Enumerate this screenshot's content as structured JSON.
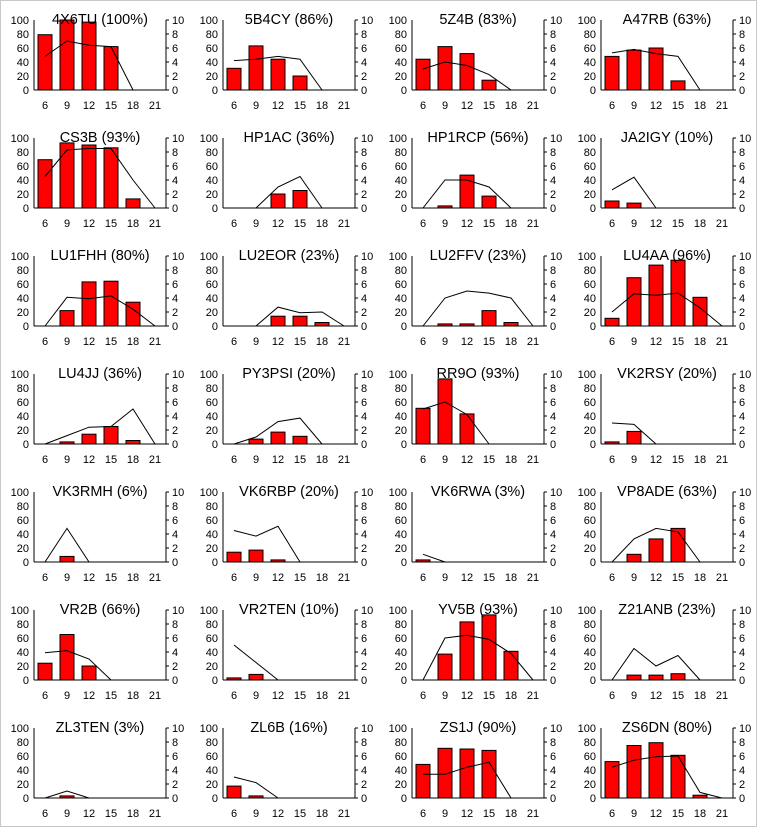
{
  "chart_data": {
    "type": "bar+line",
    "categories": [
      6,
      9,
      12,
      15,
      18,
      21
    ],
    "left_axis": {
      "ylim": [
        0,
        100
      ],
      "ticks": [
        0,
        20,
        40,
        60,
        80,
        100
      ]
    },
    "right_axis": {
      "ylim": [
        0,
        10
      ],
      "ticks": [
        0,
        2,
        4,
        6,
        8,
        10
      ]
    },
    "grid": false,
    "colors": {
      "bar": "#ff0000",
      "bar_edge": "#000000",
      "line": "#000000"
    },
    "panels": [
      {
        "title": "4X6TU (100%)",
        "bars": [
          79,
          100,
          97,
          62,
          0,
          0
        ],
        "line": [
          4.8,
          7,
          6.4,
          6.2,
          0,
          null
        ]
      },
      {
        "title": "5B4CY (86%)",
        "bars": [
          31,
          63,
          44,
          20,
          0,
          0
        ],
        "line": [
          4.2,
          4.4,
          4.8,
          4.4,
          0,
          null
        ]
      },
      {
        "title": "5Z4B (83%)",
        "bars": [
          44,
          62,
          52,
          14,
          0,
          0
        ],
        "line": [
          3,
          4,
          3.5,
          2.2,
          0,
          null
        ]
      },
      {
        "title": "A47RB (63%)",
        "bars": [
          48,
          57,
          60,
          13,
          0,
          0
        ],
        "line": [
          5.3,
          5.8,
          5.2,
          4.8,
          0,
          null
        ]
      },
      {
        "title": "CS3B (93%)",
        "bars": [
          69,
          93,
          90,
          86,
          13,
          0
        ],
        "line": [
          4.5,
          8.3,
          8.5,
          8.5,
          4,
          0
        ]
      },
      {
        "title": "HP1AC (36%)",
        "bars": [
          0,
          0,
          20,
          25,
          0,
          0
        ],
        "line": [
          null,
          0,
          3,
          4.5,
          0,
          null
        ]
      },
      {
        "title": "HP1RCP (56%)",
        "bars": [
          0,
          3,
          47,
          17,
          0,
          0
        ],
        "line": [
          0,
          4,
          4,
          3,
          0,
          null
        ]
      },
      {
        "title": "JA2IGY (10%)",
        "bars": [
          10,
          7,
          0,
          0,
          0,
          0
        ],
        "line": [
          2.6,
          4.4,
          0,
          null,
          null,
          null
        ]
      },
      {
        "title": "LU1FHH (80%)",
        "bars": [
          0,
          22,
          63,
          64,
          34,
          0
        ],
        "line": [
          0,
          4.1,
          3.9,
          4.3,
          2.4,
          0
        ]
      },
      {
        "title": "LU2EOR (23%)",
        "bars": [
          0,
          0,
          14,
          14,
          5,
          0
        ],
        "line": [
          null,
          0,
          2.7,
          1.9,
          2,
          0
        ]
      },
      {
        "title": "LU2FFV (23%)",
        "bars": [
          0,
          3,
          3,
          22,
          5,
          0
        ],
        "line": [
          0,
          4,
          5,
          4.7,
          4,
          0
        ]
      },
      {
        "title": "LU4AA (96%)",
        "bars": [
          11,
          69,
          87,
          94,
          41,
          0
        ],
        "line": [
          2,
          4.6,
          4.4,
          4.7,
          2.6,
          0
        ]
      },
      {
        "title": "LU4JJ (36%)",
        "bars": [
          0,
          3,
          14,
          25,
          5,
          0
        ],
        "line": [
          0,
          1.2,
          2.4,
          2.5,
          5,
          0
        ]
      },
      {
        "title": "PY3PSI (20%)",
        "bars": [
          0,
          7,
          17,
          11,
          0,
          0
        ],
        "line": [
          0,
          1,
          3.2,
          3.7,
          0,
          null
        ]
      },
      {
        "title": "RR9O (93%)",
        "bars": [
          51,
          93,
          43,
          0,
          0,
          0
        ],
        "line": [
          5,
          6,
          4.2,
          0,
          null,
          null
        ]
      },
      {
        "title": "VK2RSY (20%)",
        "bars": [
          3,
          18,
          0,
          0,
          0,
          0
        ],
        "line": [
          3,
          2.8,
          0,
          null,
          null,
          null
        ]
      },
      {
        "title": "VK3RMH (6%)",
        "bars": [
          0,
          8,
          0,
          0,
          0,
          0
        ],
        "line": [
          0,
          4.8,
          0,
          null,
          null,
          null
        ]
      },
      {
        "title": "VK6RBP (20%)",
        "bars": [
          14,
          17,
          3,
          0,
          0,
          0
        ],
        "line": [
          4.5,
          3.7,
          5.1,
          0,
          null,
          null
        ]
      },
      {
        "title": "VK6RWA (3%)",
        "bars": [
          3,
          0,
          0,
          0,
          0,
          0
        ],
        "line": [
          1.1,
          0,
          null,
          null,
          null,
          null
        ]
      },
      {
        "title": "VP8ADE (63%)",
        "bars": [
          0,
          11,
          33,
          48,
          0,
          0
        ],
        "line": [
          0,
          3.3,
          4.8,
          4.3,
          0,
          null
        ]
      },
      {
        "title": "VR2B (66%)",
        "bars": [
          24,
          65,
          20,
          0,
          0,
          0
        ],
        "line": [
          3.9,
          4.2,
          3,
          0,
          null,
          null
        ]
      },
      {
        "title": "VR2TEN (10%)",
        "bars": [
          3,
          8,
          0,
          0,
          0,
          0
        ],
        "line": [
          5,
          2.5,
          0,
          null,
          null,
          null
        ]
      },
      {
        "title": "YV5B (93%)",
        "bars": [
          0,
          37,
          83,
          93,
          41,
          0
        ],
        "line": [
          0,
          6,
          6.4,
          5.8,
          3.8,
          0
        ]
      },
      {
        "title": "Z21ANB (23%)",
        "bars": [
          0,
          7,
          7,
          9,
          0,
          0
        ],
        "line": [
          0,
          4.5,
          2,
          3.5,
          0,
          null
        ]
      },
      {
        "title": "ZL3TEN (3%)",
        "bars": [
          0,
          3,
          0,
          0,
          0,
          0
        ],
        "line": [
          0,
          1,
          0,
          null,
          null,
          null
        ]
      },
      {
        "title": "ZL6B (16%)",
        "bars": [
          17,
          3,
          0,
          0,
          0,
          0
        ],
        "line": [
          3,
          2.2,
          0,
          null,
          null,
          null
        ]
      },
      {
        "title": "ZS1J (90%)",
        "bars": [
          48,
          71,
          70,
          68,
          0,
          0
        ],
        "line": [
          3.4,
          3.4,
          4.4,
          5.1,
          0,
          null
        ]
      },
      {
        "title": "ZS6DN (80%)",
        "bars": [
          52,
          75,
          79,
          61,
          4,
          0
        ],
        "line": [
          4.4,
          5.4,
          5.9,
          6,
          0.8,
          0
        ]
      }
    ]
  }
}
